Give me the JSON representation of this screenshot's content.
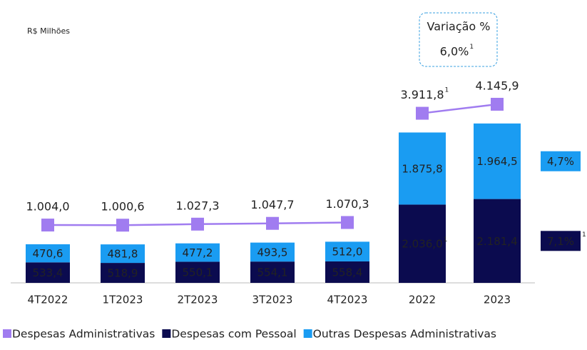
{
  "chart_data": {
    "type": "stacked_bar_line",
    "unit_label": "R$ Milhões",
    "categories": [
      "4T2022",
      "1T2023",
      "2T2023",
      "3T2023",
      "4T2023",
      "2022",
      "2023"
    ],
    "ylim": [
      0,
      5500
    ],
    "y2lim": [
      -500,
      5000
    ],
    "series": [
      {
        "name": "Despesas Administrativas",
        "type": "line",
        "axis": "y2",
        "color": "#a07cf0",
        "values": [
          1004.0,
          1000.6,
          1027.3,
          1047.7,
          1070.3,
          3911.8,
          4145.9
        ],
        "value_labels": [
          "1.004,0",
          "1.000,6",
          "1.027,3",
          "1.047,7",
          "1.070,3",
          "3.911,8",
          "4.145,9"
        ],
        "notes": [
          null,
          null,
          null,
          null,
          null,
          "1",
          null
        ]
      },
      {
        "name": "Despesas com Pessoal",
        "type": "bar",
        "color": "#0b0b4f",
        "values": [
          533.4,
          518.9,
          550.1,
          554.1,
          558.4,
          2036.0,
          2181.4
        ],
        "value_labels": [
          "533,4",
          "518,9",
          "550,1",
          "554,1",
          "558,4",
          "2.036,0",
          "2.181,4"
        ],
        "notes": [
          null,
          null,
          null,
          null,
          null,
          "1",
          null
        ],
        "variation": "7,1%",
        "variation_note": "1"
      },
      {
        "name": "Outras Despesas Administrativas",
        "type": "bar",
        "color": "#1a9cf2",
        "values": [
          470.6,
          481.8,
          477.2,
          493.5,
          512.0,
          1875.8,
          1964.5
        ],
        "value_labels": [
          "470,6",
          "481,8",
          "477,2",
          "493,5",
          "512,0",
          "1.875,8",
          "1.964,5"
        ],
        "notes": [
          null,
          null,
          null,
          null,
          null,
          null,
          null
        ],
        "variation": "4,7%"
      }
    ],
    "variation": {
      "title": "Variação %",
      "value": "6,0%",
      "note": "1"
    }
  }
}
